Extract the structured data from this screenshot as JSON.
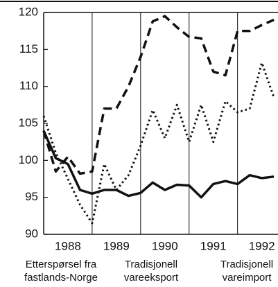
{
  "chart_data": {
    "type": "line",
    "x": [
      1988.0,
      1988.25,
      1988.5,
      1988.75,
      1989.0,
      1989.25,
      1989.5,
      1989.75,
      1990.0,
      1990.25,
      1990.5,
      1990.75,
      1991.0,
      1991.25,
      1991.5,
      1991.75,
      1992.0,
      1992.25,
      1992.5,
      1992.75
    ],
    "xlim": [
      1988,
      1992.82
    ],
    "xticks": [
      {
        "value": 1988.5,
        "label": "1988"
      },
      {
        "value": 1989.5,
        "label": "1989"
      },
      {
        "value": 1990.5,
        "label": "1990"
      },
      {
        "value": 1991.5,
        "label": "1991"
      },
      {
        "value": 1992.5,
        "label": "1992"
      }
    ],
    "ylim": [
      90,
      120
    ],
    "yticks": [
      90,
      95,
      100,
      105,
      110,
      115,
      120
    ],
    "series": [
      {
        "name": "Etterspørsel fra fastlands-Norge",
        "color": "#111111",
        "dash": "solid",
        "values": [
          104,
          100.3,
          99.5,
          96,
          95.5,
          96,
          96,
          95.2,
          95.6,
          97,
          96,
          96.7,
          96.6,
          95,
          96.8,
          97.2,
          96.8,
          98,
          97.6,
          97.8
        ]
      },
      {
        "name": "Tradisjonell vareeksport",
        "color": "#111111",
        "dash": "dashed",
        "values": [
          104,
          98.5,
          100.5,
          98.2,
          98.5,
          107,
          107,
          110,
          114,
          118.8,
          119.5,
          118,
          116.7,
          116.5,
          112,
          111.5,
          117.5,
          117.5,
          118.3,
          119
        ]
      },
      {
        "name": "Tradisjonell vareimport",
        "color": "#111111",
        "dash": "dotted",
        "values": [
          106,
          101,
          97.5,
          94,
          91.5,
          99.5,
          96,
          98,
          102,
          106.8,
          103,
          107.5,
          102.5,
          107.5,
          102.5,
          108,
          106.5,
          107,
          113.2,
          108.5
        ]
      }
    ]
  }
}
